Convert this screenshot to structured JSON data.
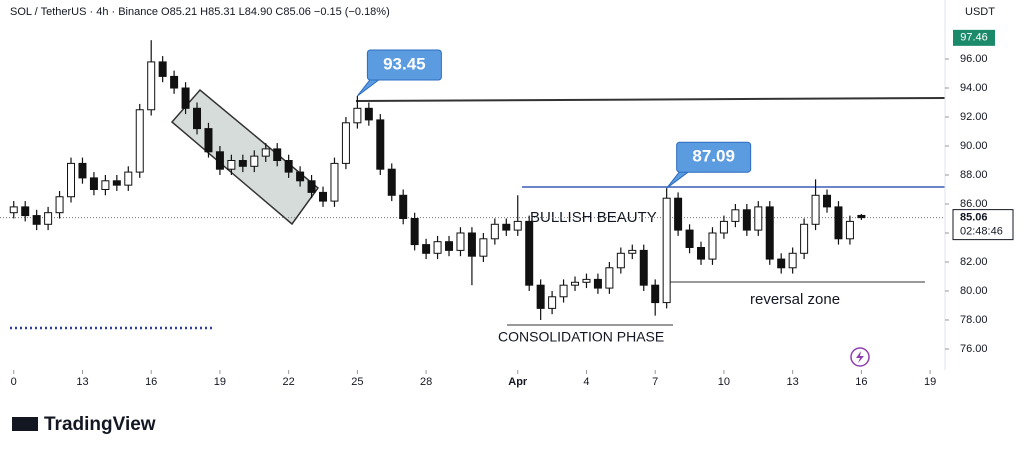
{
  "header": {
    "legend": "SOL / TetherUS · 4h · Binance  O85.21 H85.31 L84.90 C85.06 −0.15 (−0.18%)",
    "brand": "TradingView"
  },
  "chart_data": {
    "type": "candlestick",
    "currency": "USDT",
    "x": [
      0,
      0.5,
      1,
      1.5,
      2,
      2.5,
      3,
      3.5,
      4,
      4.5,
      5,
      5.5,
      6,
      6.5,
      7,
      7.5,
      8,
      8.5,
      9,
      9.5,
      10,
      10.5,
      11,
      11.5,
      12,
      12.5,
      13,
      13.5,
      14,
      14.5,
      15,
      15.5,
      16,
      16.5,
      17,
      17.5,
      18,
      18.5,
      19,
      19.5,
      20,
      20.5,
      21,
      21.5,
      22,
      22.5,
      23,
      23.5,
      24,
      24.5,
      25,
      25.5,
      26,
      26.5,
      27,
      27.5,
      28,
      28.5,
      29,
      29.5,
      30,
      30.5,
      31,
      31.5,
      32,
      32.5,
      33,
      33.5,
      34,
      34.5,
      35,
      35.5,
      36,
      36.5,
      37
    ],
    "open": [
      85.4,
      85.8,
      85.2,
      84.6,
      85.4,
      86.5,
      88.8,
      87.8,
      87.0,
      87.6,
      87.3,
      88.2,
      92.5,
      95.8,
      94.8,
      94.0,
      92.6,
      91.2,
      89.6,
      88.4,
      89.0,
      88.6,
      89.3,
      89.8,
      89.0,
      88.2,
      87.6,
      86.8,
      86.2,
      88.8,
      91.6,
      92.6,
      91.8,
      88.4,
      86.6,
      85.0,
      83.2,
      82.6,
      83.4,
      82.8,
      84.0,
      82.4,
      83.6,
      84.6,
      84.2,
      84.8,
      80.4,
      78.8,
      79.6,
      80.4,
      80.6,
      80.8,
      80.2,
      81.6,
      82.6,
      82.8,
      80.4,
      79.2,
      86.4,
      84.2,
      83.0,
      82.2,
      84.0,
      84.8,
      85.6,
      84.2,
      85.8,
      82.2,
      81.6,
      82.6,
      84.6,
      86.6,
      85.8,
      83.6,
      85.21
    ],
    "high": [
      86.2,
      86.2,
      85.6,
      85.8,
      86.9,
      89.2,
      89.2,
      88.2,
      88.0,
      88.0,
      88.6,
      92.9,
      97.3,
      96.2,
      95.2,
      94.4,
      93.0,
      91.6,
      90.0,
      89.4,
      89.4,
      89.7,
      90.2,
      90.2,
      89.4,
      88.6,
      88.0,
      87.2,
      89.2,
      92.0,
      93.45,
      93.0,
      92.2,
      88.8,
      87.0,
      85.4,
      83.6,
      83.8,
      83.8,
      84.4,
      84.4,
      84.0,
      85.0,
      85.0,
      86.6,
      85.2,
      80.8,
      80.0,
      80.8,
      81.0,
      81.2,
      81.2,
      82.0,
      83.0,
      83.2,
      83.2,
      80.8,
      87.09,
      86.8,
      84.6,
      83.4,
      84.4,
      85.2,
      86.0,
      86.0,
      86.2,
      86.2,
      82.6,
      83.0,
      85.0,
      87.7,
      87.0,
      86.2,
      85.2,
      85.31
    ],
    "low": [
      85.0,
      84.8,
      84.2,
      84.2,
      85.0,
      86.1,
      87.4,
      86.6,
      86.6,
      86.9,
      86.9,
      87.8,
      92.1,
      94.4,
      93.6,
      92.2,
      90.8,
      89.2,
      88.0,
      88.0,
      88.2,
      88.2,
      88.9,
      88.6,
      87.8,
      87.2,
      86.4,
      85.8,
      85.8,
      88.4,
      91.2,
      91.4,
      88.0,
      86.2,
      84.6,
      82.8,
      82.2,
      82.2,
      82.4,
      82.4,
      80.4,
      82.0,
      83.2,
      83.8,
      83.8,
      80.0,
      78.0,
      78.4,
      79.2,
      80.0,
      80.2,
      79.8,
      79.8,
      81.2,
      82.2,
      80.0,
      78.3,
      78.8,
      83.8,
      82.6,
      81.8,
      81.8,
      83.6,
      84.4,
      83.8,
      83.8,
      81.8,
      81.2,
      81.2,
      82.2,
      84.2,
      85.4,
      83.2,
      83.2,
      84.9
    ],
    "close": [
      85.8,
      85.2,
      84.6,
      85.4,
      86.5,
      88.8,
      87.8,
      87.0,
      87.6,
      87.3,
      88.2,
      92.5,
      95.8,
      94.8,
      94.0,
      92.6,
      91.2,
      89.6,
      88.4,
      89.0,
      88.6,
      89.3,
      89.8,
      89.0,
      88.2,
      87.6,
      86.8,
      86.2,
      88.8,
      91.6,
      92.6,
      91.8,
      88.4,
      86.6,
      85.0,
      83.2,
      82.6,
      83.4,
      82.8,
      84.0,
      82.4,
      83.6,
      84.6,
      84.2,
      84.8,
      80.4,
      78.8,
      79.6,
      80.4,
      80.6,
      80.8,
      80.2,
      81.6,
      82.6,
      82.8,
      80.4,
      79.2,
      86.4,
      84.2,
      83.0,
      82.2,
      84.0,
      84.8,
      85.6,
      84.2,
      85.8,
      82.2,
      81.6,
      82.6,
      84.6,
      86.6,
      85.8,
      83.6,
      84.8,
      85.06
    ],
    "xlim": [
      -0.6,
      40.65
    ],
    "xticks": [
      0,
      {
        "value": 3,
        "label": "13"
      },
      {
        "value": 6,
        "label": "16"
      },
      {
        "value": 9,
        "label": "19"
      },
      {
        "value": 12,
        "label": "22"
      },
      {
        "value": 15,
        "label": "25"
      },
      {
        "value": 18,
        "label": "28"
      },
      {
        "value": 22,
        "label": "Apr"
      },
      {
        "value": 25,
        "label": "4"
      },
      {
        "value": 28,
        "label": "7"
      },
      {
        "value": 31,
        "label": "10"
      },
      {
        "value": 34,
        "label": "13"
      },
      {
        "value": 37,
        "label": "16"
      },
      {
        "value": 40,
        "label": "19"
      }
    ],
    "ylim": [
      74.55,
      100.07
    ],
    "yticks": [
      {
        "value": 76,
        "label": "76.00"
      },
      {
        "value": 78,
        "label": "78.00"
      },
      {
        "value": 80,
        "label": "80.00"
      },
      {
        "value": 82,
        "label": "82.00"
      },
      {
        "value": 84,
        "label": "84.00"
      },
      {
        "value": 86,
        "label": "86.00"
      },
      {
        "value": 88,
        "label": "88.00"
      },
      {
        "value": 90,
        "label": "90.00"
      },
      {
        "value": 92,
        "label": "92.00"
      },
      {
        "value": 94,
        "label": "94.00"
      },
      {
        "value": 96,
        "label": "96.00"
      }
    ],
    "high_marker": 97.46,
    "last_price": 85.06,
    "countdown": "02:48:46",
    "callouts": [
      93.45,
      87.09
    ],
    "annotations": [
      "BULLISH BEAUTY",
      "CONSOLIDATION PHASE",
      "reversal zone"
    ]
  }
}
